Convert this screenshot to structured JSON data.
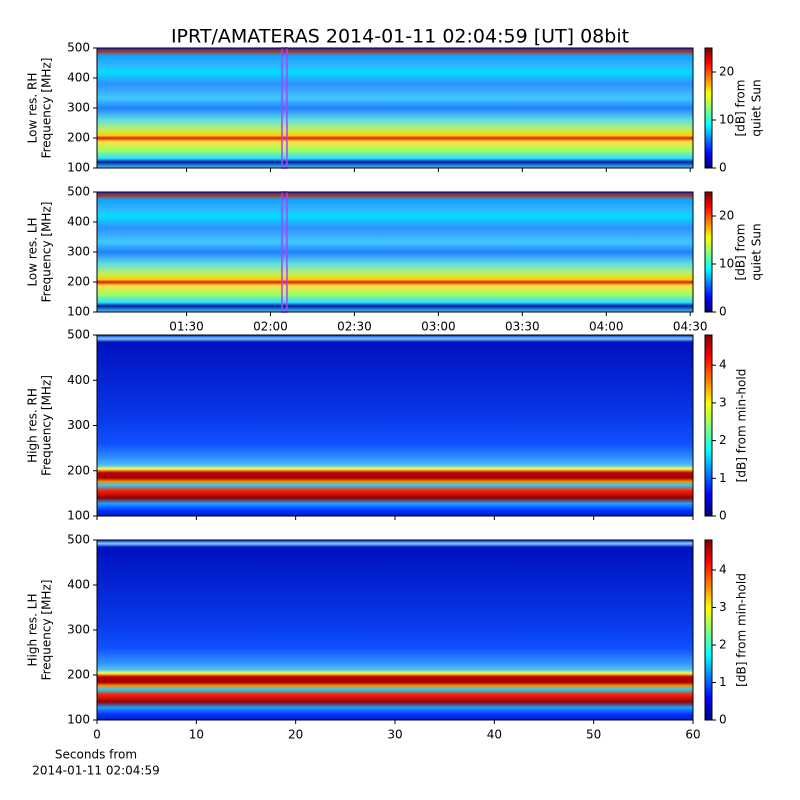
{
  "title": "IPRT/AMATERAS 2014-01-11 02:04:59 [UT]   08bit",
  "chart_data": [
    {
      "type": "heatmap",
      "ylabel": [
        "Low res. RH",
        "Frequency [MHz]"
      ],
      "ylim": [
        100,
        500
      ],
      "yticks": [
        100,
        200,
        300,
        400,
        500
      ],
      "xlim": [
        58,
        271
      ],
      "xticks": [
        {
          "value": 90,
          "label": "01:30"
        },
        {
          "value": 120,
          "label": "02:00"
        },
        {
          "value": 150,
          "label": "02:30"
        },
        {
          "value": 180,
          "label": "03:00"
        },
        {
          "value": 210,
          "label": "03:30"
        },
        {
          "value": 240,
          "label": "04:00"
        },
        {
          "value": 270,
          "label": "04:30"
        }
      ],
      "xticklabels": false,
      "cursor_x": 125,
      "cursor_color": "#b040ff",
      "clim": [
        0,
        25
      ],
      "cticks": [
        0,
        10,
        20
      ],
      "clabel": [
        "[dB] from",
        "quiet Sun"
      ],
      "palette": "low"
    },
    {
      "type": "heatmap",
      "ylabel": [
        "Low res. LH",
        "Frequency [MHz]"
      ],
      "ylim": [
        100,
        500
      ],
      "yticks": [
        100,
        200,
        300,
        400,
        500
      ],
      "xlim": [
        58,
        271
      ],
      "xticks": [
        {
          "value": 90,
          "label": "01:30"
        },
        {
          "value": 120,
          "label": "02:00"
        },
        {
          "value": 150,
          "label": "02:30"
        },
        {
          "value": 180,
          "label": "03:00"
        },
        {
          "value": 210,
          "label": "03:30"
        },
        {
          "value": 240,
          "label": "04:00"
        },
        {
          "value": 270,
          "label": "04:30"
        }
      ],
      "xticklabels": true,
      "cursor_x": 125,
      "cursor_color": "#b040ff",
      "clim": [
        0,
        25
      ],
      "cticks": [
        0,
        10,
        20
      ],
      "clabel": [
        "[dB] from",
        "quiet Sun"
      ],
      "palette": "low"
    },
    {
      "type": "heatmap",
      "ylabel": [
        "High res. RH",
        "Frequency [MHz]"
      ],
      "ylim": [
        100,
        500
      ],
      "yticks": [
        100,
        200,
        300,
        400,
        500
      ],
      "xlim": [
        0,
        60
      ],
      "xticks": [
        0,
        10,
        20,
        30,
        40,
        50,
        60
      ],
      "xticklabels": false,
      "clim": [
        0,
        4.8
      ],
      "cticks": [
        0,
        1,
        2,
        3,
        4
      ],
      "clabel": [
        "[dB] from min-hold"
      ],
      "palette": "high"
    },
    {
      "type": "heatmap",
      "ylabel": [
        "High res. LH",
        "Frequency [MHz]"
      ],
      "ylim": [
        100,
        500
      ],
      "yticks": [
        100,
        200,
        300,
        400,
        500
      ],
      "xlim": [
        0,
        60
      ],
      "xticks": [
        0,
        10,
        20,
        30,
        40,
        50,
        60
      ],
      "xticklabels": true,
      "xlabel": [
        "Seconds from",
        "2014-01-11 02:04:59"
      ],
      "clim": [
        0,
        4.8
      ],
      "cticks": [
        0,
        1,
        2,
        3,
        4
      ],
      "clabel": [
        "[dB] from min-hold"
      ],
      "palette": "high"
    }
  ]
}
